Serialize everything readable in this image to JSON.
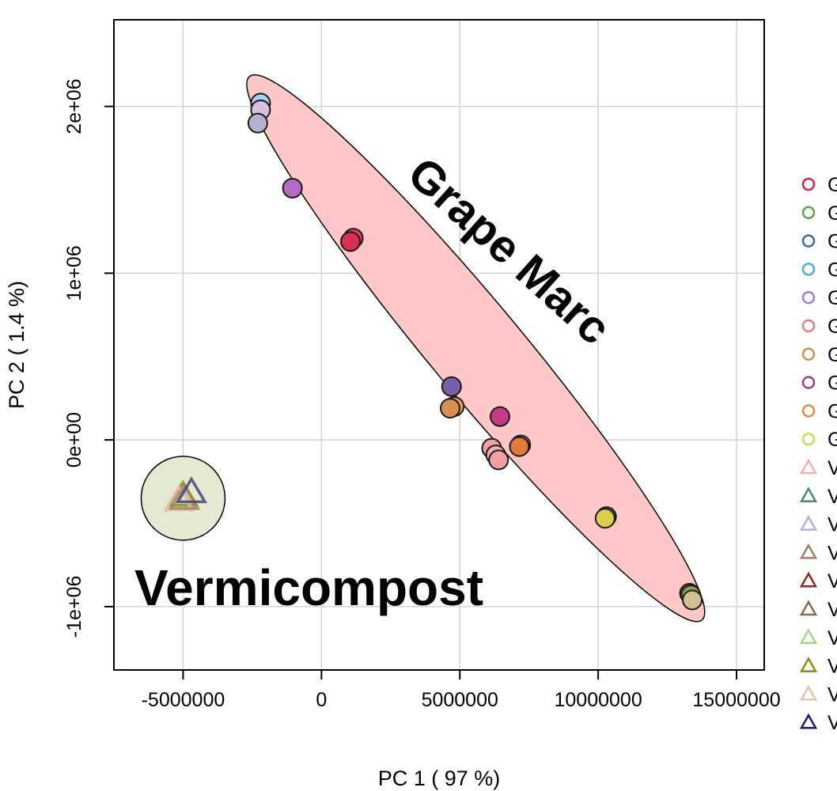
{
  "chart_data": {
    "type": "scatter",
    "title": "",
    "xlabel": "PC 1 ( 97 %)",
    "ylabel": "PC 2 ( 1.4 %)",
    "xlim": [
      -7500000,
      16000000
    ],
    "ylim": [
      -1380000,
      2520000
    ],
    "x_ticks": [
      -5000000,
      0,
      5000000,
      10000000,
      15000000
    ],
    "x_tick_labels": [
      "-5000000",
      "0",
      "5000000",
      "10000000",
      "15000000"
    ],
    "y_ticks": [
      -1000000,
      0,
      1000000,
      2000000
    ],
    "y_tick_labels": [
      "-1e+06",
      "0e+00",
      "1e+06",
      "2e+06"
    ],
    "grid": true,
    "legend_position": "right",
    "annotations": [
      {
        "text": "Grape Marc"
      },
      {
        "text": "Vermicompost"
      }
    ],
    "legend": [
      {
        "label": "G",
        "marker": "circle",
        "color": "#d6204a"
      },
      {
        "label": "G",
        "marker": "circle",
        "color": "#5fa04a"
      },
      {
        "label": "G",
        "marker": "circle",
        "color": "#3a6aa8"
      },
      {
        "label": "G",
        "marker": "circle",
        "color": "#4aa8e0"
      },
      {
        "label": "G",
        "marker": "circle",
        "color": "#a07ad8"
      },
      {
        "label": "G",
        "marker": "circle",
        "color": "#e87a7a"
      },
      {
        "label": "G",
        "marker": "circle",
        "color": "#c8904a"
      },
      {
        "label": "G",
        "marker": "circle",
        "color": "#a03a8a"
      },
      {
        "label": "G",
        "marker": "circle",
        "color": "#e88a3a"
      },
      {
        "label": "G",
        "marker": "circle",
        "color": "#c8e04a"
      },
      {
        "label": "V",
        "marker": "triangle",
        "color": "#f0b0a8"
      },
      {
        "label": "V",
        "marker": "triangle",
        "color": "#4a8a7a"
      },
      {
        "label": "V",
        "marker": "triangle",
        "color": "#b0b0e0"
      },
      {
        "label": "V",
        "marker": "triangle",
        "color": "#a87a6a"
      },
      {
        "label": "V",
        "marker": "triangle",
        "color": "#8a2a1a"
      },
      {
        "label": "V",
        "marker": "triangle",
        "color": "#8a6a4a"
      },
      {
        "label": "V",
        "marker": "triangle",
        "color": "#a0d88a"
      },
      {
        "label": "V",
        "marker": "triangle",
        "color": "#8a8a1a"
      },
      {
        "label": "V",
        "marker": "triangle",
        "color": "#e8c0b0"
      },
      {
        "label": "V",
        "marker": "triangle",
        "color": "#1a1a7a"
      }
    ],
    "ellipses": [
      {
        "group": "Grape Marc",
        "fill": "#ffc8c8",
        "stroke": "#000000",
        "center": [
          5550000,
          520000
        ],
        "semi_axis": 9800000,
        "semi_minor_axis": 120000,
        "angle_deg": -8.4
      },
      {
        "group": "Vermicompost",
        "fill": "#e6e8d2",
        "stroke": "#000000",
        "center": [
          -5000000,
          -350000
        ],
        "radius_x": 1500000,
        "radius_y": 250000
      }
    ],
    "series": [
      {
        "name": "",
        "marker": "circle",
        "points": [
          {
            "x": -2200000,
            "y": 2020000,
            "color": "#a8d0f0"
          },
          {
            "x": -2200000,
            "y": 1980000,
            "color": "#d8c0e0"
          },
          {
            "x": -2300000,
            "y": 1900000,
            "color": "#b8b0d0"
          },
          {
            "x": -1050000,
            "y": 1510000,
            "color": "#b868c8"
          },
          {
            "x": 1150000,
            "y": 1210000,
            "color": "#e8386a"
          },
          {
            "x": 1050000,
            "y": 1190000,
            "color": "#d83050"
          },
          {
            "x": 4700000,
            "y": 320000,
            "color": "#7a60a8"
          },
          {
            "x": 4800000,
            "y": 200000,
            "color": "#e8a050"
          },
          {
            "x": 4650000,
            "y": 190000,
            "color": "#d89050"
          },
          {
            "x": 6450000,
            "y": 140000,
            "color": "#c83a8a"
          },
          {
            "x": 7200000,
            "y": -30000,
            "color": "#e88a3a"
          },
          {
            "x": 7150000,
            "y": -40000,
            "color": "#e07a3a"
          },
          {
            "x": 6150000,
            "y": -50000,
            "color": "#f0a0a0"
          },
          {
            "x": 6300000,
            "y": -90000,
            "color": "#f4b0b0"
          },
          {
            "x": 6400000,
            "y": -120000,
            "color": "#f0a0a0"
          },
          {
            "x": 10300000,
            "y": -460000,
            "color": "#8a8a30"
          },
          {
            "x": 10250000,
            "y": -470000,
            "color": "#d8d04a"
          },
          {
            "x": 13300000,
            "y": -920000,
            "color": "#6a7a3a"
          },
          {
            "x": 13350000,
            "y": -930000,
            "color": "#8aa050"
          },
          {
            "x": 13400000,
            "y": -960000,
            "color": "#d0c090"
          }
        ]
      },
      {
        "name": "",
        "marker": "triangle",
        "points": [
          {
            "x": -5100000,
            "y": -360000,
            "color": "#d8a8a0"
          },
          {
            "x": -5050000,
            "y": -350000,
            "color": "#a0d88a"
          },
          {
            "x": -5000000,
            "y": -340000,
            "color": "#8a8a1a"
          },
          {
            "x": -5150000,
            "y": -370000,
            "color": "#e8c0b0"
          },
          {
            "x": -4950000,
            "y": -360000,
            "color": "#a87a6a"
          },
          {
            "x": -4700000,
            "y": -320000,
            "color": "#3a3a7a"
          }
        ]
      }
    ]
  }
}
